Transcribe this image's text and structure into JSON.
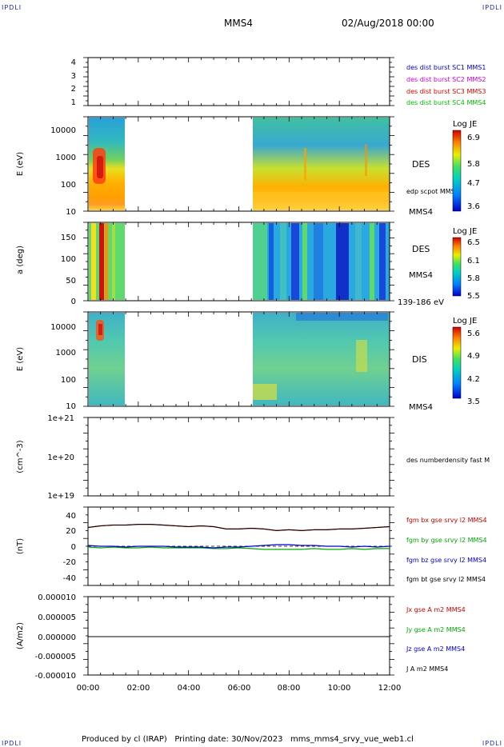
{
  "header": {
    "corner_label": "IPDLI",
    "spacecraft": "MMS4",
    "datetime": "02/Aug/2018 00:00"
  },
  "footer": {
    "text": "Produced by cl (IRAP)   Printing date: 30/Nov/2023   mms_mms4_srvy_vue_web1.cl"
  },
  "colors": {
    "mms1": "#0000cc",
    "mms2": "#cc00cc",
    "mms3": "#dd0000",
    "mms4": "#00bb00",
    "bx": "#cc0000",
    "by": "#00aa00",
    "bz": "#0000cc",
    "bt": "#000000"
  },
  "chart_data": [
    {
      "type": "line",
      "panel": "burst-flags",
      "yticks": [
        "1",
        "2",
        "3",
        "4"
      ],
      "ylim": [
        0.6,
        4.4
      ],
      "legend": [
        {
          "label": "des dist burst SC1 MMS1",
          "color": "#0000cc"
        },
        {
          "label": "des dist burst SC2 MMS2",
          "color": "#cc00cc"
        },
        {
          "label": "des dist burst SC3 MMS3",
          "color": "#dd0000"
        },
        {
          "label": "des dist burst SC4 MMS4",
          "color": "#00bb00"
        }
      ],
      "series": []
    },
    {
      "type": "heatmap",
      "panel": "des-energy",
      "ylabel": "E (eV)",
      "yscale": "log",
      "ylim": [
        10,
        30000
      ],
      "yticks": [
        "10",
        "100",
        "1000",
        "10000"
      ],
      "label": "DES",
      "overlay_label": "edp scpot MMS4",
      "sc_label": "MMS4",
      "colorbar": {
        "title": "Log JE",
        "ticks": [
          "6.9",
          "5.8",
          "4.7",
          "3.6"
        ]
      },
      "data_gap_hours": [
        1.5,
        6.6
      ]
    },
    {
      "type": "heatmap",
      "panel": "des-pitch",
      "ylabel": "a (deg)",
      "ylim": [
        0,
        180
      ],
      "yticks": [
        "0",
        "50",
        "100",
        "150"
      ],
      "label": "DES",
      "sc_label": "MMS4",
      "energy_range": "139-186 eV",
      "colorbar": {
        "title": "Log JE",
        "ticks": [
          "6.5",
          "6.1",
          "5.8",
          "5.5"
        ]
      },
      "data_gap_hours": [
        1.5,
        6.6
      ]
    },
    {
      "type": "heatmap",
      "panel": "dis-energy",
      "ylabel": "E (eV)",
      "yscale": "log",
      "ylim": [
        10,
        30000
      ],
      "yticks": [
        "10",
        "100",
        "1000",
        "10000"
      ],
      "label": "DIS",
      "sc_label": "MMS4",
      "colorbar": {
        "title": "Log JE",
        "ticks": [
          "5.6",
          "4.9",
          "4.2",
          "3.5"
        ]
      },
      "data_gap_hours": [
        1.5,
        6.6
      ]
    },
    {
      "type": "line",
      "panel": "density",
      "ylabel": "(cm^-3)",
      "yscale": "log",
      "yticks": [
        "1e+19",
        "1e+20",
        "1e+21"
      ],
      "legend": [
        {
          "label": "des numberdensity fast M",
          "color": "#000000"
        }
      ],
      "series": []
    },
    {
      "type": "line",
      "panel": "magnetic-field",
      "ylabel": "(nT)",
      "ylim": [
        -50,
        50
      ],
      "yticks": [
        "-40",
        "-20",
        "0",
        "20",
        "40"
      ],
      "x": [
        0,
        0.5,
        1,
        1.5,
        2,
        2.5,
        3,
        3.5,
        4,
        4.5,
        5,
        5.5,
        6,
        6.5,
        7,
        7.5,
        8,
        8.5,
        9,
        9.5,
        10,
        10.5,
        11,
        11.5,
        12
      ],
      "series": [
        {
          "name": "fgm bx gse srvy l2 MMS4",
          "color": "#cc0000",
          "values": [
            24,
            26,
            27,
            27,
            28,
            28,
            27,
            26,
            25,
            26,
            25,
            22,
            22,
            23,
            22,
            20,
            21,
            20,
            21,
            21,
            22,
            22,
            23,
            24,
            25
          ]
        },
        {
          "name": "fgm by gse srvy l2 MMS4",
          "color": "#00aa00",
          "values": [
            -1,
            -2,
            -1,
            -2,
            -2,
            -1,
            -2,
            -2,
            -2,
            -2,
            -3,
            -3,
            -2,
            -3,
            -4,
            -4,
            -4,
            -4,
            -3,
            -4,
            -4,
            -3,
            -4,
            -3,
            -3
          ]
        },
        {
          "name": "fgm bz gse srvy l2 MMS4",
          "color": "#0000cc",
          "values": [
            1,
            0,
            0,
            -1,
            0,
            0,
            0,
            -1,
            -1,
            -1,
            -2,
            -1,
            -1,
            0,
            1,
            2,
            2,
            1,
            1,
            0,
            0,
            -1,
            0,
            -1,
            0
          ]
        },
        {
          "name": "fgm bt gse srvy l2 MMS4",
          "color": "#000000",
          "values": [
            24,
            26,
            27,
            27,
            28,
            28,
            27,
            26,
            25,
            26,
            25,
            22,
            22,
            23,
            22,
            20,
            21,
            20,
            21,
            21,
            22,
            22,
            23,
            24,
            25
          ]
        }
      ]
    },
    {
      "type": "line",
      "panel": "current-density",
      "ylabel": "(A/m2)",
      "ylim": [
        -1e-05,
        1e-05
      ],
      "yticks": [
        "-0.000010",
        "-0.000005",
        "0.000000",
        "0.000005",
        "0.000010"
      ],
      "xlabel_ticks": [
        "00:00",
        "02:00",
        "04:00",
        "06:00",
        "08:00",
        "10:00",
        "12:00"
      ],
      "xlim_hours": [
        0,
        12
      ],
      "legend": [
        {
          "label": "Jx gse A m2 MMS4",
          "color": "#cc0000"
        },
        {
          "label": "Jy gse A m2 MMS4",
          "color": "#00aa00"
        },
        {
          "label": "Jz gse A m2 MMS4",
          "color": "#0000cc"
        },
        {
          "label": "J A m2 MMS4",
          "color": "#000000"
        }
      ],
      "x": [
        0,
        3,
        5,
        12
      ],
      "series": [
        {
          "color": "#000000",
          "values": [
            0,
            0,
            0,
            0
          ]
        }
      ]
    }
  ]
}
